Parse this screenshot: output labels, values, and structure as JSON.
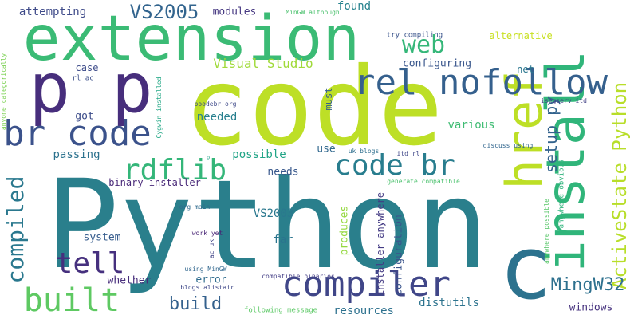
{
  "cloud": {
    "words": [
      {
        "text": "Python",
        "color": "#2a7f8c"
      },
      {
        "text": "code",
        "color": "#bddf26"
      },
      {
        "text": "extension",
        "color": "#3bbb75"
      },
      {
        "text": "p p",
        "color": "#472e7c"
      },
      {
        "text": "install",
        "color": "#30b57a"
      },
      {
        "text": "href",
        "color": "#bddf26"
      },
      {
        "text": "rel nofollow",
        "color": "#35608d"
      },
      {
        "text": "br code",
        "color": "#3b528b"
      },
      {
        "text": "code br",
        "color": "#287d8e"
      },
      {
        "text": "compiler",
        "color": "#404688"
      },
      {
        "text": "c",
        "color": "#2c728e"
      },
      {
        "text": "built",
        "color": "#5ec962"
      },
      {
        "text": "compiled",
        "color": "#2a788e"
      },
      {
        "text": "ActiveState Python",
        "color": "#b8de29"
      },
      {
        "text": "tell",
        "color": "#46307e"
      },
      {
        "text": "rdflib",
        "color": "#34b679"
      },
      {
        "text": "MingW32",
        "color": "#2d708e"
      },
      {
        "text": "build",
        "color": "#34618d"
      },
      {
        "text": "web",
        "color": "#35b779"
      },
      {
        "text": "setup py",
        "color": "#33638d"
      },
      {
        "text": "VS2005",
        "color": "#32648e"
      },
      {
        "text": "Visual Studio",
        "color": "#a0da39"
      },
      {
        "text": "attempting",
        "color": "#3e4a89"
      },
      {
        "text": "modules",
        "color": "#453781"
      },
      {
        "text": "found",
        "color": "#26828e"
      },
      {
        "text": "alternative",
        "color": "#c8e020"
      },
      {
        "text": "try compiling",
        "color": "#3a548c"
      },
      {
        "text": "MinGW although",
        "color": "#4ac16d"
      },
      {
        "text": "configuring",
        "color": "#39568c"
      },
      {
        "text": "case",
        "color": "#3e4c8a"
      },
      {
        "text": "net",
        "color": "#2a768e"
      },
      {
        "text": "rl ac",
        "color": "#3c4f8a"
      },
      {
        "text": "anyone categorically",
        "color": "#7ad151"
      },
      {
        "text": "Cygwin installed",
        "color": "#22a785"
      },
      {
        "text": "boodebr org",
        "color": "#3e4989"
      },
      {
        "text": "isegserv itd",
        "color": "#424186"
      },
      {
        "text": "must",
        "color": "#355f8d"
      },
      {
        "text": "needed",
        "color": "#277f8e"
      },
      {
        "text": "got",
        "color": "#3d4d8a"
      },
      {
        "text": "various",
        "color": "#3fbc73"
      },
      {
        "text": "passing",
        "color": "#2c728e"
      },
      {
        "text": "possible",
        "color": "#20a486"
      },
      {
        "text": "use",
        "color": "#31688e"
      },
      {
        "text": "uk blogs",
        "color": "#2e6f8e"
      },
      {
        "text": "itd rl",
        "color": "#3f4788"
      },
      {
        "text": "discuss using",
        "color": "#31668e"
      },
      {
        "text": "anywhere obvious",
        "color": "#2eb37c"
      },
      {
        "text": "binary installer",
        "color": "#482878"
      },
      {
        "text": "needs",
        "color": "#38588c"
      },
      {
        "text": "generate compatible",
        "color": "#4ac16d"
      },
      {
        "text": "installer anywhere",
        "color": "#443b84"
      },
      {
        "text": "org main",
        "color": "#2f6b8e"
      },
      {
        "text": "VS2003",
        "color": "#2a788e"
      },
      {
        "text": "produces",
        "color": "#95d840"
      },
      {
        "text": "configuration",
        "color": "#3a548c"
      },
      {
        "text": "anywhere possible",
        "color": "#56c667"
      },
      {
        "text": "system",
        "color": "#365c8d"
      },
      {
        "text": "far",
        "color": "#2b748e"
      },
      {
        "text": "work yet",
        "color": "#482475"
      },
      {
        "text": "ac uk",
        "color": "#414487"
      },
      {
        "text": "using MinGW",
        "color": "#31678e"
      },
      {
        "text": "blogs alistair",
        "color": "#3f4889"
      },
      {
        "text": "compatible binaries",
        "color": "#433e85"
      },
      {
        "text": "whether",
        "color": "#472d7b"
      },
      {
        "text": "error",
        "color": "#2f6c8e"
      },
      {
        "text": "resources",
        "color": "#2d718e"
      },
      {
        "text": "following message",
        "color": "#5ac864"
      },
      {
        "text": "distutils",
        "color": "#2c738e"
      },
      {
        "text": "windows",
        "color": "#46327e"
      },
      {
        "text": "p",
        "color": "#1fa088"
      }
    ]
  }
}
